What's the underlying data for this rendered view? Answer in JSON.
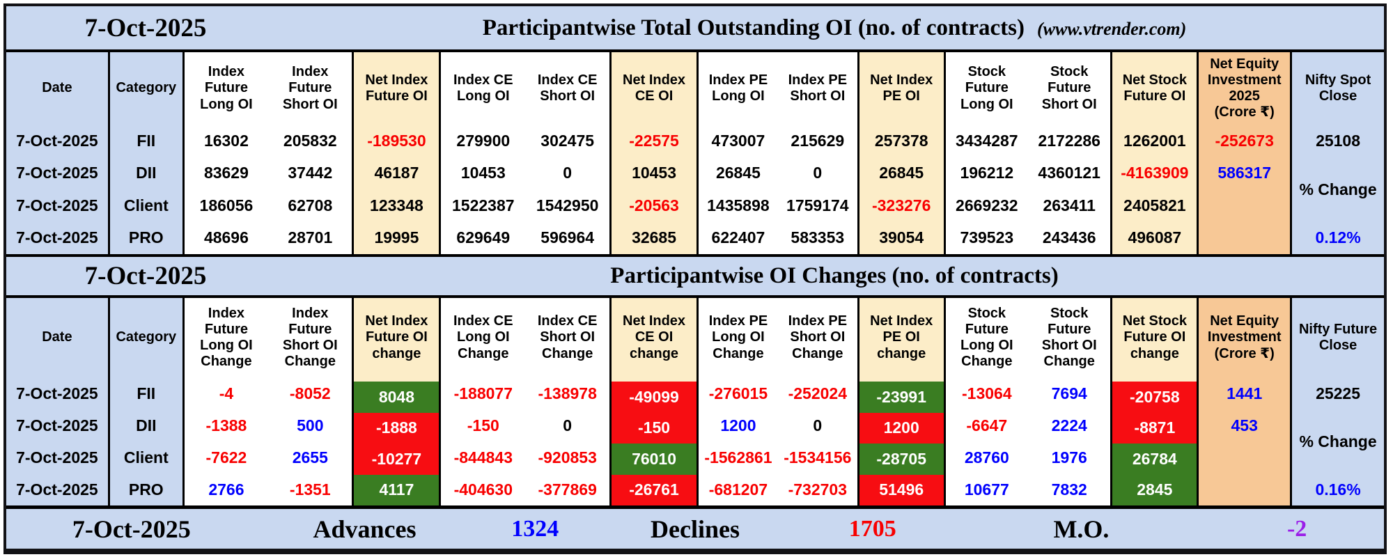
{
  "meta": {
    "date": "7-Oct-2025",
    "source": "(www.vtrender.com)"
  },
  "colors": {
    "panel_blue": "#c9d8f0",
    "net_column_cream": "#fcedc8",
    "equity_column_peach": "#f7c896",
    "bullish_cell_green": "#3a7d22",
    "bearish_cell_red": "#f70d12",
    "negative_text_red": "#f80000",
    "positive_text_blue": "#0000fe",
    "mo_text_purple": "#9b1fe8"
  },
  "table1": {
    "title": "Participantwise Total Outstanding OI (no. of contracts)",
    "columns": [
      {
        "id": "date",
        "kind": "single",
        "bg": "blue",
        "header": "Date",
        "cells": [
          {
            "v": "7-Oct-2025"
          },
          {
            "v": "7-Oct-2025"
          },
          {
            "v": "7-Oct-2025"
          },
          {
            "v": "7-Oct-2025"
          }
        ]
      },
      {
        "id": "category",
        "kind": "single",
        "bg": "blue",
        "header": "Category",
        "cells": [
          {
            "v": "FII"
          },
          {
            "v": "DII"
          },
          {
            "v": "Client"
          },
          {
            "v": "PRO"
          }
        ]
      },
      {
        "id": "index-future",
        "kind": "pair",
        "bg": "white",
        "headers": [
          "Index\nFuture\nLong OI",
          "Index\nFuture\nShort OI"
        ],
        "rows": [
          [
            {
              "v": "16302"
            },
            {
              "v": "205832"
            }
          ],
          [
            {
              "v": "83629"
            },
            {
              "v": "37442"
            }
          ],
          [
            {
              "v": "186056"
            },
            {
              "v": "62708"
            }
          ],
          [
            {
              "v": "48696"
            },
            {
              "v": "28701"
            }
          ]
        ]
      },
      {
        "id": "net-index-future-oi",
        "kind": "net",
        "bg": "cream",
        "header": "Net Index\nFuture OI",
        "cells": [
          {
            "v": "-189530",
            "c": "r"
          },
          {
            "v": "46187"
          },
          {
            "v": "123348"
          },
          {
            "v": "19995"
          }
        ]
      },
      {
        "id": "index-ce",
        "kind": "pair",
        "bg": "white",
        "headers": [
          "Index CE\nLong OI",
          "Index CE\nShort OI"
        ],
        "rows": [
          [
            {
              "v": "279900"
            },
            {
              "v": "302475"
            }
          ],
          [
            {
              "v": "10453"
            },
            {
              "v": "0"
            }
          ],
          [
            {
              "v": "1522387"
            },
            {
              "v": "1542950"
            }
          ],
          [
            {
              "v": "629649"
            },
            {
              "v": "596964"
            }
          ]
        ]
      },
      {
        "id": "net-index-ce-oi",
        "kind": "net",
        "bg": "cream",
        "header": "Net Index\nCE OI",
        "cells": [
          {
            "v": "-22575",
            "c": "r"
          },
          {
            "v": "10453"
          },
          {
            "v": "-20563",
            "c": "r"
          },
          {
            "v": "32685"
          }
        ]
      },
      {
        "id": "index-pe",
        "kind": "pair",
        "bg": "white",
        "headers": [
          "Index PE\nLong OI",
          "Index PE\nShort OI"
        ],
        "rows": [
          [
            {
              "v": "473007"
            },
            {
              "v": "215629"
            }
          ],
          [
            {
              "v": "26845"
            },
            {
              "v": "0"
            }
          ],
          [
            {
              "v": "1435898"
            },
            {
              "v": "1759174"
            }
          ],
          [
            {
              "v": "622407"
            },
            {
              "v": "583353"
            }
          ]
        ]
      },
      {
        "id": "net-index-pe-oi",
        "kind": "net",
        "bg": "cream",
        "header": "Net Index\nPE OI",
        "cells": [
          {
            "v": "257378"
          },
          {
            "v": "26845"
          },
          {
            "v": "-323276",
            "c": "r"
          },
          {
            "v": "39054"
          }
        ]
      },
      {
        "id": "stock-future",
        "kind": "pair",
        "bg": "white",
        "headers": [
          "Stock\nFuture\nLong OI",
          "Stock\nFuture\nShort OI"
        ],
        "rows": [
          [
            {
              "v": "3434287"
            },
            {
              "v": "2172286"
            }
          ],
          [
            {
              "v": "196212"
            },
            {
              "v": "4360121"
            }
          ],
          [
            {
              "v": "2669232"
            },
            {
              "v": "263411"
            }
          ],
          [
            {
              "v": "739523"
            },
            {
              "v": "243436"
            }
          ]
        ]
      },
      {
        "id": "net-stock-future-oi",
        "kind": "net",
        "bg": "cream",
        "header": "Net Stock\nFuture OI",
        "cells": [
          {
            "v": "1262001"
          },
          {
            "v": "-4163909",
            "c": "r"
          },
          {
            "v": "2405821"
          },
          {
            "v": "496087"
          }
        ]
      },
      {
        "id": "net-equity-investment",
        "kind": "equity",
        "bg": "peach",
        "header": "Net Equity\nInvestment\n2025\n(Crore ₹)",
        "cells": [
          {
            "v": "-252673",
            "c": "r"
          },
          {
            "v": "586317",
            "c": "b"
          },
          {
            "v": ""
          },
          {
            "v": ""
          }
        ]
      },
      {
        "id": "nifty-spot-close",
        "kind": "nifty",
        "bg": "blue",
        "header": "Nifty Spot\nClose",
        "cells": [
          {
            "v": "25108"
          },
          {
            "v": "% Change"
          },
          {
            "v": "0.12%",
            "c": "b"
          }
        ]
      }
    ]
  },
  "table2": {
    "title": "Participantwise OI Changes (no. of contracts)",
    "columns": [
      {
        "id": "date",
        "kind": "single",
        "bg": "blue",
        "header": "Date",
        "cells": [
          {
            "v": "7-Oct-2025"
          },
          {
            "v": "7-Oct-2025"
          },
          {
            "v": "7-Oct-2025"
          },
          {
            "v": "7-Oct-2025"
          }
        ]
      },
      {
        "id": "category",
        "kind": "single",
        "bg": "blue",
        "header": "Category",
        "cells": [
          {
            "v": "FII"
          },
          {
            "v": "DII"
          },
          {
            "v": "Client"
          },
          {
            "v": "PRO"
          }
        ]
      },
      {
        "id": "index-future-change",
        "kind": "pair",
        "bg": "white",
        "headers": [
          "Index\nFuture\nLong OI\nChange",
          "Index\nFuture\nShort OI\nChange"
        ],
        "rows": [
          [
            {
              "v": "-4",
              "c": "r"
            },
            {
              "v": "-8052",
              "c": "r"
            }
          ],
          [
            {
              "v": "-1388",
              "c": "r"
            },
            {
              "v": "500",
              "c": "b"
            }
          ],
          [
            {
              "v": "-7622",
              "c": "r"
            },
            {
              "v": "2655",
              "c": "b"
            }
          ],
          [
            {
              "v": "2766",
              "c": "b"
            },
            {
              "v": "-1351",
              "c": "r"
            }
          ]
        ]
      },
      {
        "id": "net-index-future-oi-change",
        "kind": "net",
        "bg": "cream",
        "header": "Net Index\nFuture OI\nchange",
        "cells": [
          {
            "v": "8048",
            "bg": "g"
          },
          {
            "v": "-1888",
            "bg": "r"
          },
          {
            "v": "-10277",
            "bg": "r"
          },
          {
            "v": "4117",
            "bg": "g"
          }
        ]
      },
      {
        "id": "index-ce-change",
        "kind": "pair",
        "bg": "white",
        "headers": [
          "Index CE\nLong OI\nChange",
          "Index CE\nShort OI\nChange"
        ],
        "rows": [
          [
            {
              "v": "-188077",
              "c": "r"
            },
            {
              "v": "-138978",
              "c": "r"
            }
          ],
          [
            {
              "v": "-150",
              "c": "r"
            },
            {
              "v": "0"
            }
          ],
          [
            {
              "v": "-844843",
              "c": "r"
            },
            {
              "v": "-920853",
              "c": "r"
            }
          ],
          [
            {
              "v": "-404630",
              "c": "r"
            },
            {
              "v": "-377869",
              "c": "r"
            }
          ]
        ]
      },
      {
        "id": "net-index-ce-oi-change",
        "kind": "net",
        "bg": "cream",
        "header": "Net Index\nCE OI\nchange",
        "cells": [
          {
            "v": "-49099",
            "bg": "r"
          },
          {
            "v": "-150",
            "bg": "r"
          },
          {
            "v": "76010",
            "bg": "g"
          },
          {
            "v": "-26761",
            "bg": "r"
          }
        ]
      },
      {
        "id": "index-pe-change",
        "kind": "pair",
        "bg": "white",
        "headers": [
          "Index PE\nLong OI\nChange",
          "Index PE\nShort OI\nChange"
        ],
        "rows": [
          [
            {
              "v": "-276015",
              "c": "r"
            },
            {
              "v": "-252024",
              "c": "r"
            }
          ],
          [
            {
              "v": "1200",
              "c": "b"
            },
            {
              "v": "0"
            }
          ],
          [
            {
              "v": "-1562861",
              "c": "r"
            },
            {
              "v": "-1534156",
              "c": "r"
            }
          ],
          [
            {
              "v": "-681207",
              "c": "r"
            },
            {
              "v": "-732703",
              "c": "r"
            }
          ]
        ]
      },
      {
        "id": "net-index-pe-oi-change",
        "kind": "net",
        "bg": "cream",
        "header": "Net Index\nPE OI\nchange",
        "cells": [
          {
            "v": "-23991",
            "bg": "g"
          },
          {
            "v": "1200",
            "bg": "r"
          },
          {
            "v": "-28705",
            "bg": "g"
          },
          {
            "v": "51496",
            "bg": "r"
          }
        ]
      },
      {
        "id": "stock-future-change",
        "kind": "pair",
        "bg": "white",
        "headers": [
          "Stock\nFuture\nLong OI\nChange",
          "Stock\nFuture\nShort OI\nChange"
        ],
        "rows": [
          [
            {
              "v": "-13064",
              "c": "r"
            },
            {
              "v": "7694",
              "c": "b"
            }
          ],
          [
            {
              "v": "-6647",
              "c": "r"
            },
            {
              "v": "2224",
              "c": "b"
            }
          ],
          [
            {
              "v": "28760",
              "c": "b"
            },
            {
              "v": "1976",
              "c": "b"
            }
          ],
          [
            {
              "v": "10677",
              "c": "b"
            },
            {
              "v": "7832",
              "c": "b"
            }
          ]
        ]
      },
      {
        "id": "net-stock-future-oi-change",
        "kind": "net",
        "bg": "cream",
        "header": "Net Stock\nFuture OI\nchange",
        "cells": [
          {
            "v": "-20758",
            "bg": "r"
          },
          {
            "v": "-8871",
            "bg": "r"
          },
          {
            "v": "26784",
            "bg": "g"
          },
          {
            "v": "2845",
            "bg": "g"
          }
        ]
      },
      {
        "id": "net-equity-investment",
        "kind": "equity",
        "bg": "peach",
        "header": "Net Equity\nInvestment\n(Crore ₹)",
        "cells": [
          {
            "v": "1441",
            "c": "b"
          },
          {
            "v": "453",
            "c": "b"
          },
          {
            "v": ""
          },
          {
            "v": ""
          }
        ]
      },
      {
        "id": "nifty-future-close",
        "kind": "nifty",
        "bg": "blue",
        "header": "Nifty Future\nClose",
        "cells": [
          {
            "v": "25225"
          },
          {
            "v": "% Change"
          },
          {
            "v": "0.16%",
            "c": "b"
          }
        ]
      }
    ]
  },
  "bottom": {
    "date": "7-Oct-2025",
    "advances_label": "Advances",
    "advances_value": "1324",
    "declines_label": "Declines",
    "declines_value": "1705",
    "mo_label": "M.O.",
    "mo_value": "-2"
  }
}
